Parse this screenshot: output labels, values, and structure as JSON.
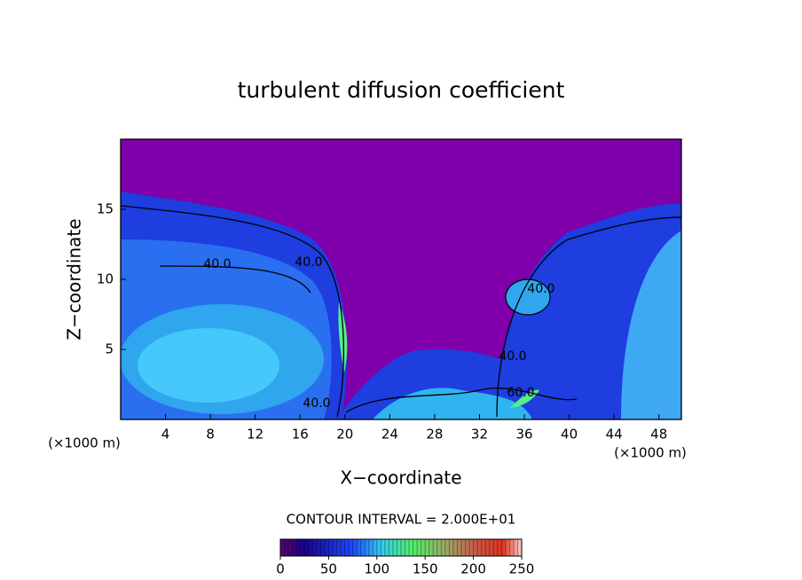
{
  "chart_data": {
    "type": "contour",
    "title": "turbulent diffusion coefficient",
    "xlabel": "X−coordinate",
    "ylabel": "Z−coordinate",
    "xunit": "(×1000 m)",
    "yunit": "(×1000 m)",
    "xlim": [
      0,
      50
    ],
    "xticks": [
      4,
      8,
      12,
      16,
      20,
      24,
      28,
      32,
      36,
      40,
      44,
      48
    ],
    "ylim": [
      0,
      20
    ],
    "yticks": [
      5,
      10,
      15
    ],
    "contour_labels": [
      "40.0",
      "40.0",
      "40.0",
      "40.0",
      "40.0",
      "60.0"
    ],
    "contour_interval": "CONTOUR INTERVAL = 2.000E+01",
    "colorbar": {
      "lim": [
        0,
        250
      ],
      "ticks": [
        0,
        50,
        100,
        150,
        200,
        250
      ]
    }
  }
}
